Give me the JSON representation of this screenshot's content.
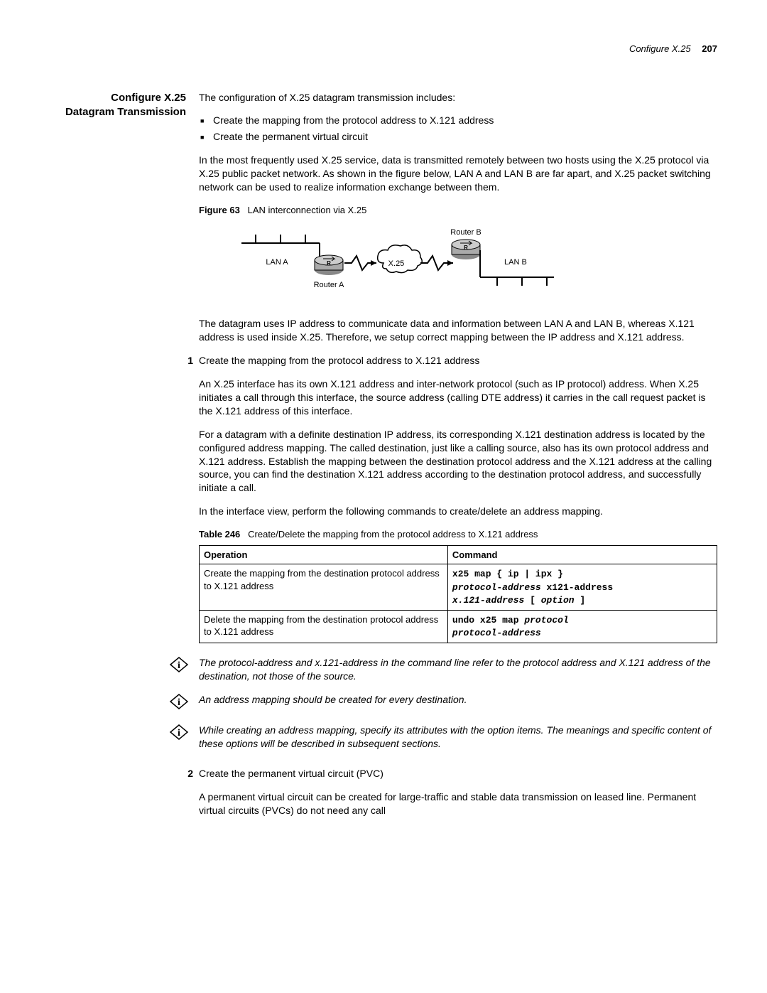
{
  "header": {
    "title": "Configure X.25",
    "page": "207"
  },
  "section_title_l1": "Configure X.25",
  "section_title_l2": "Datagram Transmission",
  "intro": "The configuration of X.25 datagram transmission includes:",
  "bullets": [
    "Create the mapping from the protocol address to X.121 address",
    "Create the permanent virtual circuit"
  ],
  "para1": "In the most frequently used X.25 service, data is transmitted remotely between two hosts using the X.25 protocol via X.25 public packet network. As shown in the figure below, LAN A and LAN B are far apart, and X.25 packet switching network can be used to realize information exchange between them.",
  "fig63_label": "Figure 63",
  "fig63_caption": "LAN interconnection via X.25",
  "fig_labels": {
    "lanA": "LAN A",
    "lanB": "LAN B",
    "routerA": "Router A",
    "routerB": "Router B",
    "cloud": "X.25"
  },
  "para2": "The datagram uses IP address to communicate data and information between LAN A and LAN B, whereas X.121 address is used inside X.25. Therefore, we setup correct mapping between the IP address and X.121 address.",
  "step1_title": "Create the mapping from the protocol address to X.121 address",
  "step1_p1": "An X.25 interface has its own X.121 address and inter-network protocol (such as IP protocol) address. When X.25 initiates a call through this interface, the source address (calling DTE address) it carries in the call request packet is the X.121 address of this interface.",
  "step1_p2": "For a datagram with a definite destination IP address, its corresponding X.121 destination address is located by the configured address mapping. The called destination, just like a calling source, also has its own protocol address and X.121 address. Establish the mapping between the destination protocol address and the X.121 address at the calling source, you can find the destination X.121 address according to the destination protocol address, and successfully initiate a call.",
  "step1_p3": "In the interface view, perform the following commands to create/delete an address mapping.",
  "tbl246_label": "Table 246",
  "tbl246_caption": "Create/Delete the mapping from the protocol address to X.121 address",
  "tbl246": {
    "headers": [
      "Operation",
      "Command"
    ],
    "rows": [
      {
        "op": "Create the mapping from the destination protocol address to X.121 address",
        "cmd_parts": [
          {
            "t": "mono",
            "v": "x25 map { ip | ipx }"
          },
          {
            "t": "br"
          },
          {
            "t": "mono-i",
            "v": "protocol-address"
          },
          {
            "t": "mono",
            "v": " x121-address"
          },
          {
            "t": "br"
          },
          {
            "t": "mono-i",
            "v": "x.121-address"
          },
          {
            "t": "mono",
            "v": " [ "
          },
          {
            "t": "mono-i",
            "v": "option"
          },
          {
            "t": "mono",
            "v": " ]"
          }
        ]
      },
      {
        "op": "Delete the mapping from the destination protocol address to X.121 address",
        "cmd_parts": [
          {
            "t": "mono",
            "v": "undo x25 map "
          },
          {
            "t": "mono-i",
            "v": "protocol"
          },
          {
            "t": "br"
          },
          {
            "t": "mono-i",
            "v": "protocol-address"
          }
        ]
      }
    ]
  },
  "note1": "The protocol-address and x.121-address in the command line refer to the protocol address and X.121 address of the destination, not those of the source.",
  "note2": "An address mapping should be created for every destination.",
  "note3": "While creating an address mapping, specify its attributes with the option items. The meanings and specific content of these options will be described in subsequent sections.",
  "step2_title": "Create the permanent virtual circuit (PVC)",
  "step2_p1": "A permanent virtual circuit can be created for large-traffic and stable data transmission on leased line. Permanent virtual circuits (PVCs) do not need any call"
}
